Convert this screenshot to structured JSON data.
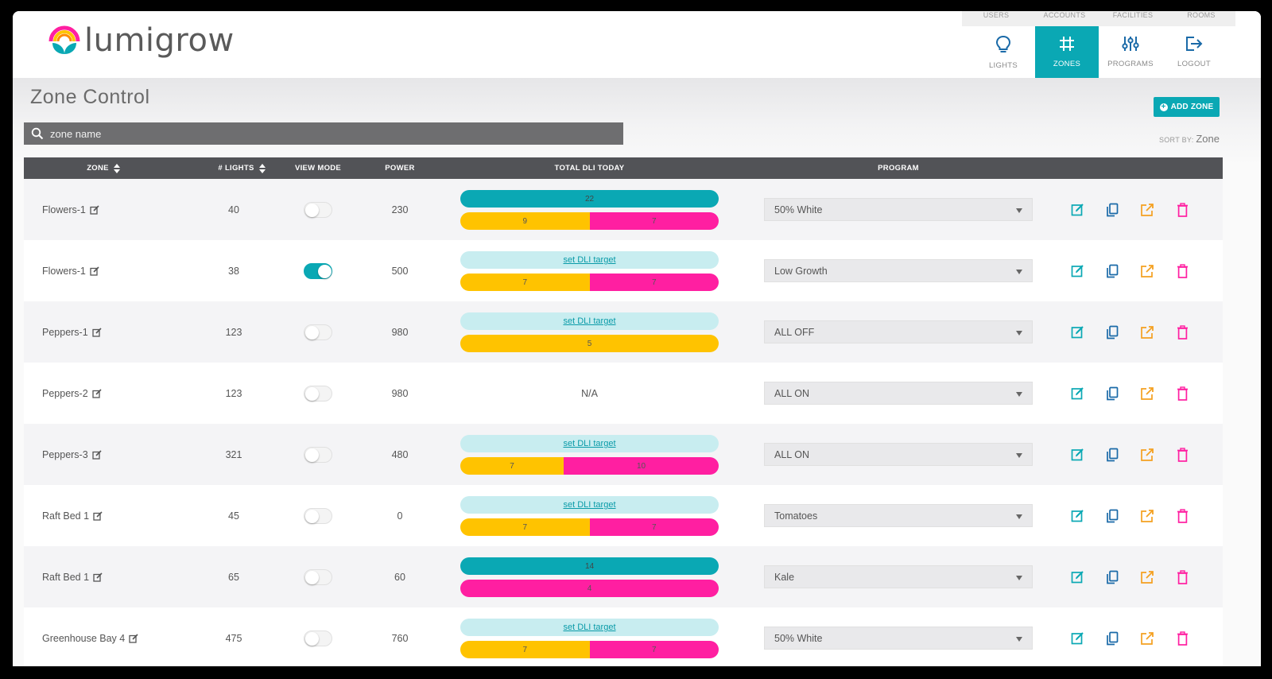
{
  "brand": {
    "name": "lumigrow"
  },
  "sub_nav": [
    "USERS",
    "ACCOUNTS",
    "FACILITIES",
    "ROOMS"
  ],
  "main_nav": [
    {
      "label": "LIGHTS",
      "icon": "bulb-icon",
      "active": false
    },
    {
      "label": "ZONES",
      "icon": "grid-icon",
      "active": true
    },
    {
      "label": "PROGRAMS",
      "icon": "sliders-icon",
      "active": false
    },
    {
      "label": "LOGOUT",
      "icon": "logout-icon",
      "active": false
    }
  ],
  "page": {
    "title": "Zone Control",
    "add_zone_label": "ADD ZONE",
    "sort_by_label": "SORT BY:",
    "sort_by_value": "Zone",
    "search_placeholder": "zone name"
  },
  "columns": {
    "zone": "ZONE",
    "lights": "# LIGHTS",
    "view_mode": "VIEW MODE",
    "power": "POWER",
    "dli": "TOTAL DLI TODAY",
    "program": "PROGRAM"
  },
  "colors": {
    "accent": "#0aa8b4",
    "yellow": "#ffc300",
    "pink": "#ff1fa1",
    "edit": "#0aa8b4",
    "copy": "#1a6aa8",
    "export": "#f4a020",
    "delete": "#ff1fa1"
  },
  "set_dli_label": "set DLI target",
  "rows": [
    {
      "zone": "Flowers-1",
      "lights": "40",
      "view_mode": false,
      "power": "230",
      "dli": {
        "target": "22",
        "segments": [
          {
            "color": "yellow",
            "value": "9",
            "fraction": 0.5
          },
          {
            "color": "pink",
            "value": "7",
            "fraction": 0.5
          }
        ]
      },
      "program": "50% White"
    },
    {
      "zone": "Flowers-1",
      "lights": "38",
      "view_mode": true,
      "power": "500",
      "dli": {
        "target": null,
        "segments": [
          {
            "color": "yellow",
            "value": "7",
            "fraction": 0.5
          },
          {
            "color": "pink",
            "value": "7",
            "fraction": 0.5
          }
        ]
      },
      "program": "Low Growth"
    },
    {
      "zone": "Peppers-1",
      "lights": "123",
      "view_mode": false,
      "power": "980",
      "dli": {
        "target": null,
        "segments": [
          {
            "color": "yellow",
            "value": "5",
            "fraction": 1.0
          }
        ]
      },
      "program": "ALL OFF"
    },
    {
      "zone": "Peppers-2",
      "lights": "123",
      "view_mode": false,
      "power": "980",
      "dli": null,
      "dli_na": "N/A",
      "program": "ALL ON"
    },
    {
      "zone": "Peppers-3",
      "lights": "321",
      "view_mode": false,
      "power": "480",
      "dli": {
        "target": null,
        "segments": [
          {
            "color": "yellow",
            "value": "7",
            "fraction": 0.4
          },
          {
            "color": "pink",
            "value": "10",
            "fraction": 0.6
          }
        ]
      },
      "program": "ALL ON"
    },
    {
      "zone": "Raft Bed 1",
      "lights": "45",
      "view_mode": false,
      "power": "0",
      "dli": {
        "target": null,
        "segments": [
          {
            "color": "yellow",
            "value": "7",
            "fraction": 0.5
          },
          {
            "color": "pink",
            "value": "7",
            "fraction": 0.5
          }
        ]
      },
      "program": "Tomatoes"
    },
    {
      "zone": "Raft Bed 1",
      "lights": "65",
      "view_mode": false,
      "power": "60",
      "dli": {
        "target": "14",
        "segments": [
          {
            "color": "pink",
            "value": "4",
            "fraction": 1.0
          }
        ]
      },
      "program": "Kale"
    },
    {
      "zone": "Greenhouse Bay 4",
      "lights": "475",
      "view_mode": false,
      "power": "760",
      "dli": {
        "target": null,
        "segments": [
          {
            "color": "yellow",
            "value": "7",
            "fraction": 0.5
          },
          {
            "color": "pink",
            "value": "7",
            "fraction": 0.5
          }
        ]
      },
      "program": "50% White"
    }
  ]
}
